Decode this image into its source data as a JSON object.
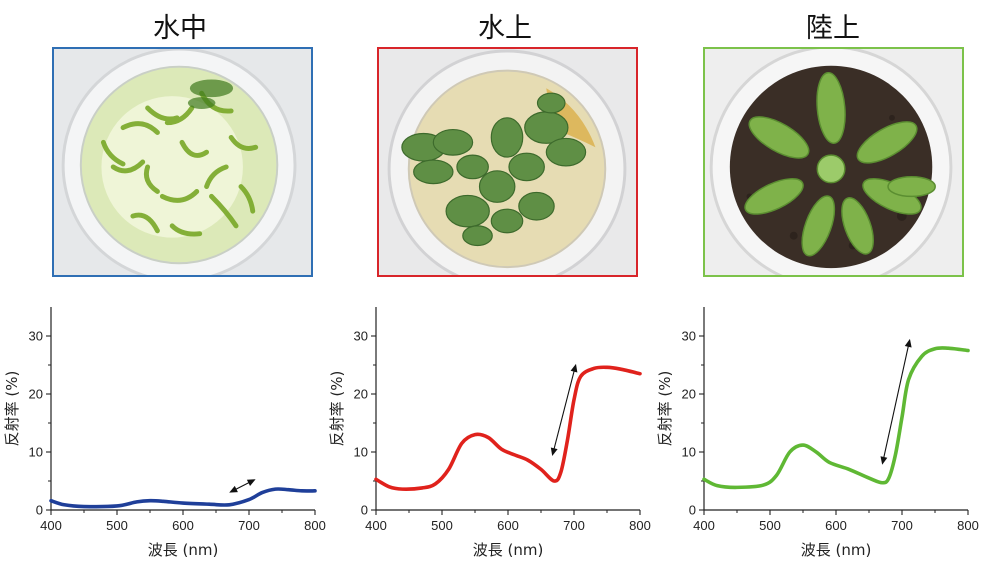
{
  "panels": [
    {
      "title": "水中",
      "frame_color": "#2f6fb4",
      "photo": {
        "icon": "submerged-plant-in-petri-dish"
      }
    },
    {
      "title": "水上",
      "frame_color": "#d8252a",
      "photo": {
        "icon": "floating-leaves-in-petri-dish"
      }
    },
    {
      "title": "陸上",
      "frame_color": "#7cc24a",
      "photo": {
        "icon": "rosette-plant-in-soil"
      }
    }
  ],
  "chart_data": [
    {
      "type": "line",
      "xlabel": "波長 (nm)",
      "ylabel": "反射率 (%)",
      "xlim": [
        400,
        800
      ],
      "ylim": [
        0,
        35
      ],
      "xticks": [
        "400",
        "500",
        "600",
        "700",
        "800"
      ],
      "yticks": [
        "0",
        "10",
        "20",
        "30"
      ],
      "grid": false,
      "series": [
        {
          "color": "#1f3f99",
          "x": [
            400,
            420,
            450,
            500,
            530,
            550,
            570,
            600,
            640,
            670,
            700,
            720,
            740,
            760,
            780,
            800
          ],
          "y": [
            1.6,
            0.9,
            0.6,
            0.7,
            1.4,
            1.6,
            1.5,
            1.2,
            1.0,
            0.9,
            1.8,
            3.0,
            3.6,
            3.5,
            3.3,
            3.3
          ]
        }
      ],
      "annotation": {
        "type": "double-arrow",
        "from": [
          670,
          3.0
        ],
        "to": [
          710,
          5.3
        ]
      }
    },
    {
      "type": "line",
      "xlabel": "波長 (nm)",
      "ylabel": "反射率 (%)",
      "xlim": [
        400,
        800
      ],
      "ylim": [
        0,
        35
      ],
      "xticks": [
        "400",
        "500",
        "600",
        "700",
        "800"
      ],
      "yticks": [
        "0",
        "10",
        "20",
        "30"
      ],
      "grid": false,
      "series": [
        {
          "color": "#e0221c",
          "x": [
            400,
            420,
            440,
            470,
            490,
            510,
            530,
            550,
            570,
            590,
            610,
            630,
            650,
            670,
            680,
            690,
            700,
            710,
            730,
            750,
            770,
            800
          ],
          "y": [
            5.3,
            4.0,
            3.6,
            3.8,
            4.5,
            7.0,
            11.5,
            13.0,
            12.5,
            10.5,
            9.5,
            8.6,
            7.0,
            5.0,
            6.5,
            12.0,
            19.0,
            23.0,
            24.4,
            24.6,
            24.3,
            23.5
          ]
        }
      ],
      "annotation": {
        "type": "double-arrow",
        "from": [
          667,
          9.3
        ],
        "to": [
          703,
          25.2
        ]
      }
    },
    {
      "type": "line",
      "xlabel": "波長 (nm)",
      "ylabel": "反射率 (%)",
      "xlim": [
        400,
        800
      ],
      "ylim": [
        0,
        35
      ],
      "xticks": [
        "400",
        "500",
        "600",
        "700",
        "800"
      ],
      "yticks": [
        "0",
        "10",
        "20",
        "30"
      ],
      "grid": false,
      "series": [
        {
          "color": "#5fb834",
          "x": [
            400,
            420,
            450,
            490,
            510,
            530,
            550,
            570,
            590,
            620,
            650,
            670,
            680,
            690,
            700,
            710,
            730,
            750,
            770,
            800
          ],
          "y": [
            5.3,
            4.2,
            3.9,
            4.3,
            6.0,
            10.0,
            11.2,
            10.0,
            8.2,
            7.0,
            5.5,
            4.7,
            5.5,
            9.5,
            16.0,
            22.5,
            26.5,
            27.8,
            27.9,
            27.5
          ]
        }
      ],
      "annotation": {
        "type": "double-arrow",
        "from": [
          670,
          7.8
        ],
        "to": [
          712,
          29.5
        ]
      }
    }
  ]
}
